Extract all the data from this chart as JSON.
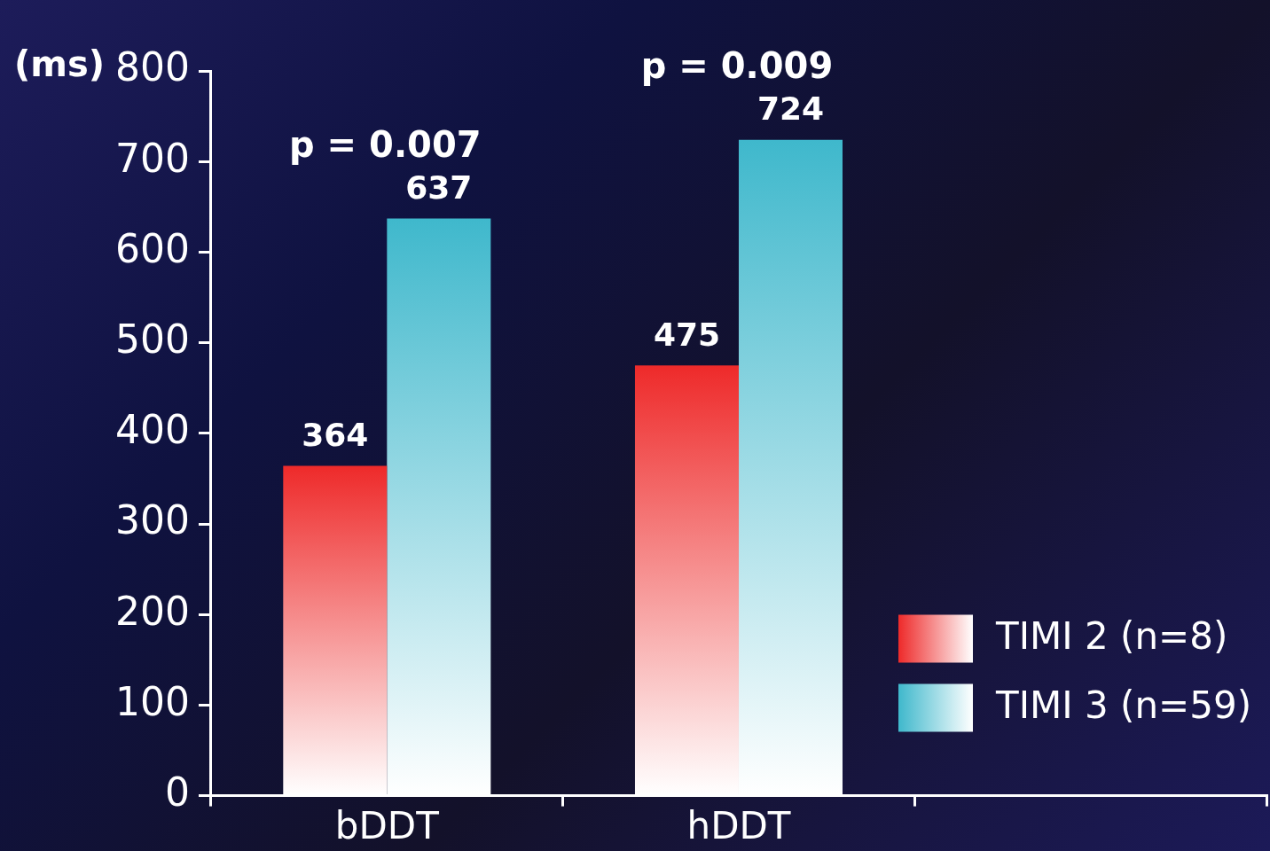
{
  "chart_data": {
    "type": "bar",
    "ylabel": "(ms)",
    "categories": [
      "bDDT",
      "hDDT",
      null
    ],
    "series": [
      {
        "name": "TIMI 2 (n=8)",
        "color": "#ee2a2a",
        "values": [
          364,
          475,
          null
        ]
      },
      {
        "name": "TIMI 3 (n=59)",
        "color": "#3fb8cc",
        "values": [
          637,
          724,
          null
        ]
      }
    ],
    "ylim": [
      0,
      800
    ],
    "yticks": [
      0,
      100,
      200,
      300,
      400,
      500,
      600,
      700,
      800
    ],
    "grid": false,
    "legend": "bottom right",
    "data_labels": true,
    "annotations": [
      "p = 0.007",
      "p = 0.009"
    ]
  }
}
